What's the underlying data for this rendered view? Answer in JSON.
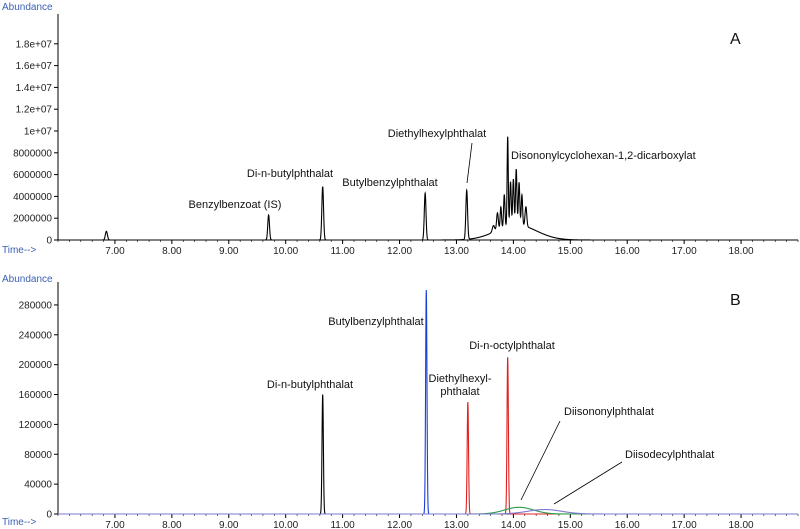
{
  "chart_data": [
    {
      "type": "line",
      "panel_label": "A",
      "ylabel": "Abundance",
      "xlabel": "Time-->",
      "xlim": [
        6.0,
        19.0
      ],
      "ylim": [
        0,
        20000000
      ],
      "x_ticks": [
        "7.00",
        "8.00",
        "9.00",
        "10.00",
        "11.00",
        "12.00",
        "13.00",
        "14.00",
        "15.00",
        "16.00",
        "17.00",
        "18.00"
      ],
      "y_ticks": [
        "0",
        "2000000",
        "4000000",
        "6000000",
        "8000000",
        "1e+07",
        "1.2e+07",
        "1.4e+07",
        "1.6e+07",
        "1.8e+07"
      ],
      "series": [
        {
          "color": "#000000",
          "peaks": [
            [
              6.85,
              800000,
              0.018
            ],
            [
              9.7,
              2300000,
              0.015
            ],
            [
              10.65,
              4900000,
              0.015
            ],
            [
              12.45,
              4300000,
              0.015
            ],
            [
              13.18,
              4500000,
              0.015
            ],
            [
              13.65,
              600000,
              0.02
            ],
            [
              13.72,
              1600000,
              0.015
            ],
            [
              13.78,
              2000000,
              0.012
            ],
            [
              13.84,
              3000000,
              0.012
            ],
            [
              13.9,
              8200000,
              0.01
            ],
            [
              13.95,
              4000000,
              0.012
            ],
            [
              14.0,
              4200000,
              0.012
            ],
            [
              14.05,
              5100000,
              0.012
            ],
            [
              14.1,
              3900000,
              0.012
            ],
            [
              14.15,
              2800000,
              0.012
            ],
            [
              14.22,
              1800000,
              0.015
            ]
          ],
          "humps": [
            [
              14.05,
              1400000,
              0.35
            ]
          ]
        }
      ],
      "annotations": [
        {
          "text": "Benzylbenzoat (IS)",
          "x": 9.7
        },
        {
          "text": "Di-n-butylphthalat",
          "x": 10.65
        },
        {
          "text": "Butylbenzylphthalat",
          "x": 12.45
        },
        {
          "text": "Diethylhexylphthalat",
          "x": 13.18
        },
        {
          "text": "Disononylcyclohexan-1,2-dicarboxylat",
          "x": 13.9
        }
      ]
    },
    {
      "type": "line",
      "panel_label": "B",
      "ylabel": "Abundance",
      "xlabel": "Time-->",
      "xlim": [
        6.0,
        19.0
      ],
      "ylim": [
        0,
        300000
      ],
      "x_ticks": [
        "7.00",
        "8.00",
        "9.00",
        "10.00",
        "11.00",
        "12.00",
        "13.00",
        "14.00",
        "15.00",
        "16.00",
        "17.00",
        "18.00"
      ],
      "y_ticks": [
        "0",
        "40000",
        "80000",
        "120000",
        "160000",
        "200000",
        "240000",
        "280000"
      ],
      "series": [
        {
          "color": "#000000",
          "peaks": [
            [
              10.65,
              160000,
              0.012
            ]
          ],
          "humps": []
        },
        {
          "color": "#1a3fd8",
          "peaks": [
            [
              12.47,
              300000,
              0.012
            ]
          ],
          "humps": []
        },
        {
          "color": "#e02020",
          "peaks": [
            [
              13.2,
              150000,
              0.012
            ],
            [
              13.9,
              210000,
              0.012
            ]
          ],
          "humps": []
        },
        {
          "color": "#2a9a4a",
          "peaks": [],
          "humps": [
            [
              14.1,
              9000,
              0.25
            ]
          ]
        },
        {
          "color": "#7a7acc",
          "peaks": [],
          "humps": [
            [
              14.55,
              6000,
              0.3
            ]
          ]
        }
      ],
      "annotations": [
        {
          "text": "Di-n-butylphthalat",
          "x": 10.65
        },
        {
          "text": "Butylbenzylphthalat",
          "x": 12.47
        },
        {
          "text": "Di-n-octylphthalat",
          "x": 13.9
        },
        {
          "text": "Diethylhexyl-",
          "x": 13.2
        },
        {
          "text": "phthalat",
          "x": 13.2
        },
        {
          "text": "Diisononylphthalat",
          "x": 14.1
        },
        {
          "text": "Diisodecylphthalat",
          "x": 14.55
        }
      ]
    }
  ]
}
